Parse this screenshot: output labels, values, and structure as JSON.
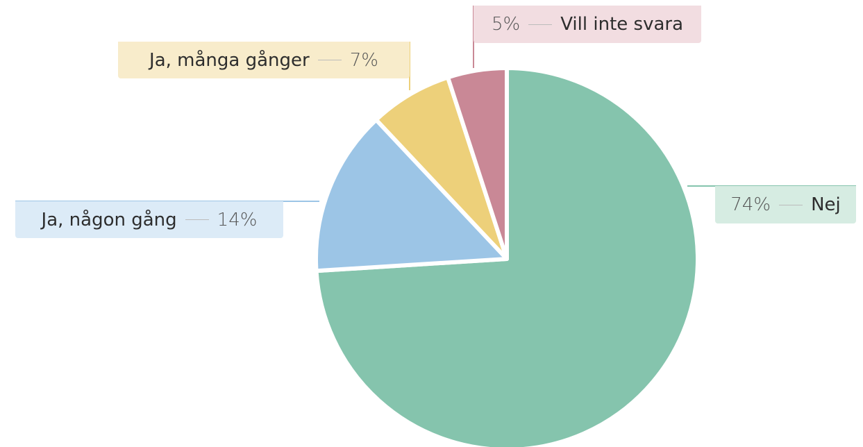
{
  "chart_data": {
    "type": "pie",
    "categories": [
      "Nej",
      "Ja, någon gång",
      "Ja, många gånger",
      "Vill inte svara"
    ],
    "values": [
      74,
      14,
      7,
      5
    ],
    "value_labels": [
      "74%",
      "14%",
      "7%",
      "5%"
    ],
    "colors": [
      "#85c4ad",
      "#9cc5e6",
      "#edd07a",
      "#c98896"
    ]
  }
}
